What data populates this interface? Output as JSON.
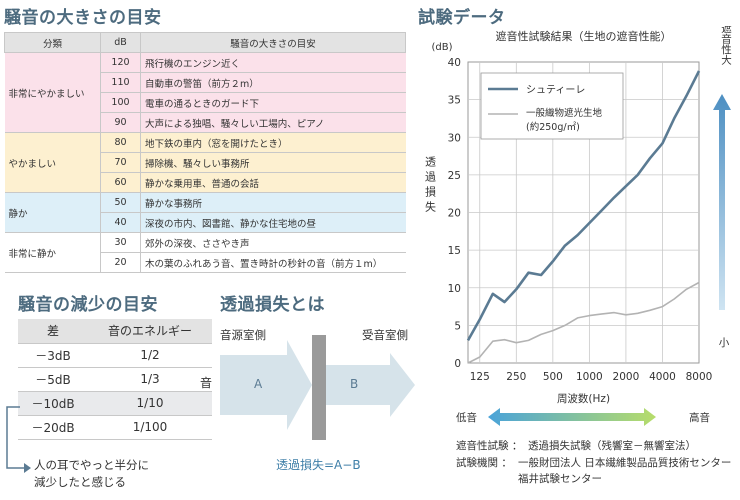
{
  "noise_table": {
    "title": "騒音の大きさの目安",
    "headers": [
      "分類",
      "dB",
      "騒音の大きさの目安"
    ],
    "groups": [
      {
        "category": "非常にやかましい",
        "tone": "pink",
        "rows": [
          {
            "db": "120",
            "desc": "飛行機のエンジン近く"
          },
          {
            "db": "110",
            "desc": "自動車の警笛（前方２m）"
          },
          {
            "db": "100",
            "desc": "電車の通るときのガード下"
          },
          {
            "db": "90",
            "desc": "大声による独唱、騒々しい工場内、ピアノ"
          }
        ]
      },
      {
        "category": "やかましい",
        "tone": "yellow",
        "rows": [
          {
            "db": "80",
            "desc": "地下鉄の車内（窓を開けたとき）"
          },
          {
            "db": "70",
            "desc": "掃除機、騒々しい事務所"
          },
          {
            "db": "60",
            "desc": "静かな乗用車、普通の会話"
          }
        ]
      },
      {
        "category": "静か",
        "tone": "blue",
        "rows": [
          {
            "db": "50",
            "desc": "静かな事務所"
          },
          {
            "db": "40",
            "desc": "深夜の市内、図書館、静かな住宅地の昼"
          }
        ]
      },
      {
        "category": "非常に静か",
        "tone": "white",
        "rows": [
          {
            "db": "30",
            "desc": "郊外の深夜、ささやき声"
          },
          {
            "db": "20",
            "desc": "木の葉のふれあう音、置き時計の秒針の音（前方１m）"
          }
        ]
      }
    ]
  },
  "reduction": {
    "title": "騒音の減少の目安",
    "headers": [
      "差",
      "音のエネルギー"
    ],
    "rows": [
      {
        "diff": "－3dB",
        "energy": "1/2"
      },
      {
        "diff": "－5dB",
        "energy": "1/3"
      },
      {
        "diff": "－10dB",
        "energy": "1/10"
      },
      {
        "diff": "－20dB",
        "energy": "1/100"
      }
    ],
    "note_line1": "人の耳でやっと半分に",
    "note_line2": "減少したと感じる"
  },
  "transmission": {
    "title": "透過損失とは",
    "source_room": "音源室側",
    "receive_room": "受音室側",
    "sound_label": "音",
    "label_a": "A",
    "label_b": "B",
    "formula": "透過損失=A−B"
  },
  "test": {
    "title": "試験データ",
    "footnote_label1": "遮音性試験 ：",
    "footnote_value1": "透過損失試験（残響室－無響室法）",
    "footnote_label2": "試験機関 ：",
    "footnote_value2": "一般財団法人 日本繊維製品品質技術センター",
    "footnote_value3": "福井試験センター",
    "low_label": "低音",
    "high_label": "高音",
    "big_label": "遮音性大",
    "small_label": "小"
  },
  "colors": {
    "title": "#4d6b7f",
    "series_shutiere": "#5b7b93",
    "series_general": "#b3b3b3",
    "arrow": "#d6e3ea"
  },
  "chart_data": {
    "type": "line",
    "title": "遮音性試験結果（生地の遮音性能）",
    "xlabel": "周波数(Hz)",
    "ylabel": "透過損失",
    "yunit": "(dB)",
    "ylim": [
      0,
      40
    ],
    "yticks": [
      0,
      5,
      10,
      15,
      20,
      25,
      30,
      35,
      40
    ],
    "xticks": [
      "125",
      "250",
      "500",
      "1000",
      "2000",
      "4000",
      "8000"
    ],
    "grid": true,
    "legend_position": "top-left",
    "series": [
      {
        "name": "シュティーレ",
        "points": [
          [
            100,
            3
          ],
          [
            125,
            5.8
          ],
          [
            160,
            9.2
          ],
          [
            200,
            8.1
          ],
          [
            250,
            9.8
          ],
          [
            315,
            12
          ],
          [
            400,
            11.7
          ],
          [
            500,
            13.5
          ],
          [
            630,
            15.6
          ],
          [
            800,
            17
          ],
          [
            1000,
            18.6
          ],
          [
            1250,
            20.2
          ],
          [
            1600,
            22
          ],
          [
            2000,
            23.5
          ],
          [
            2500,
            25
          ],
          [
            3150,
            27.2
          ],
          [
            4000,
            29.2
          ],
          [
            5000,
            32.5
          ],
          [
            6300,
            35.5
          ],
          [
            8000,
            38.8
          ]
        ]
      },
      {
        "name": "一般織物遮光生地",
        "name_line2": "(約250g/㎡)",
        "points": [
          [
            100,
            0
          ],
          [
            125,
            0.8
          ],
          [
            160,
            2.9
          ],
          [
            200,
            3.1
          ],
          [
            250,
            2.7
          ],
          [
            315,
            3
          ],
          [
            400,
            3.8
          ],
          [
            500,
            4.3
          ],
          [
            630,
            5
          ],
          [
            800,
            6
          ],
          [
            1000,
            6.3
          ],
          [
            1250,
            6.5
          ],
          [
            1600,
            6.7
          ],
          [
            2000,
            6.4
          ],
          [
            2500,
            6.6
          ],
          [
            3150,
            7
          ],
          [
            4000,
            7.5
          ],
          [
            5000,
            8.5
          ],
          [
            6300,
            9.8
          ],
          [
            8000,
            10.7
          ]
        ]
      }
    ]
  }
}
